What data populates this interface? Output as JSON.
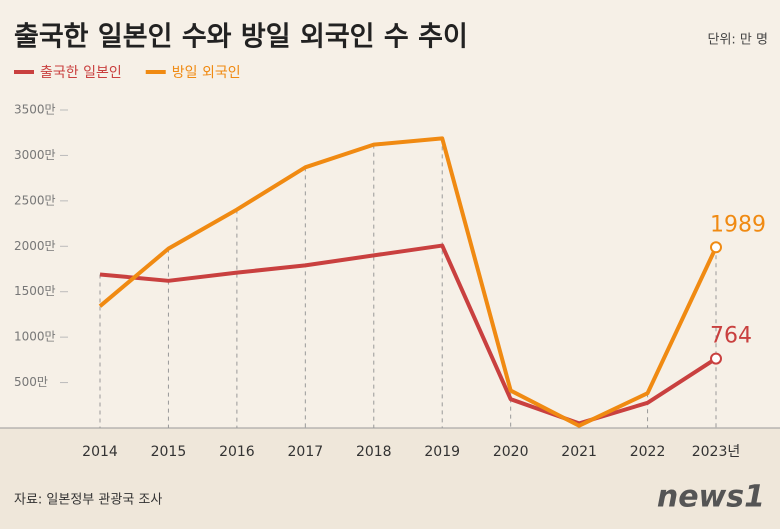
{
  "chart_data": {
    "type": "line",
    "title": "출국한 일본인 수와 방일 외국인 수 추이",
    "unit": "단위: 만 명",
    "categories": [
      "2014",
      "2015",
      "2016",
      "2017",
      "2018",
      "2019",
      "2020",
      "2021",
      "2022",
      "2023년"
    ],
    "series": [
      {
        "name": "출국한 일본인",
        "color": "#c9403f",
        "values": [
          1690,
          1620,
          1710,
          1790,
          1900,
          2008,
          317,
          51,
          277,
          764
        ]
      },
      {
        "name": "방일 외국인",
        "color": "#f08a12",
        "values": [
          1341,
          1974,
          2404,
          2869,
          3119,
          3188,
          412,
          25,
          383,
          1989
        ]
      }
    ],
    "ylim": [
      0,
      3500
    ],
    "yticks": [
      {
        "value": 500,
        "label": "500만"
      },
      {
        "value": 1000,
        "label": "1000만"
      },
      {
        "value": 1500,
        "label": "1500만"
      },
      {
        "value": 2000,
        "label": "2000만"
      },
      {
        "value": 2500,
        "label": "2500만"
      },
      {
        "value": 3000,
        "label": "3000만"
      },
      {
        "value": 3500,
        "label": "3500만"
      }
    ],
    "grid": true,
    "source": "자료: 일본정부 관광국 조사",
    "logo": "news1"
  }
}
